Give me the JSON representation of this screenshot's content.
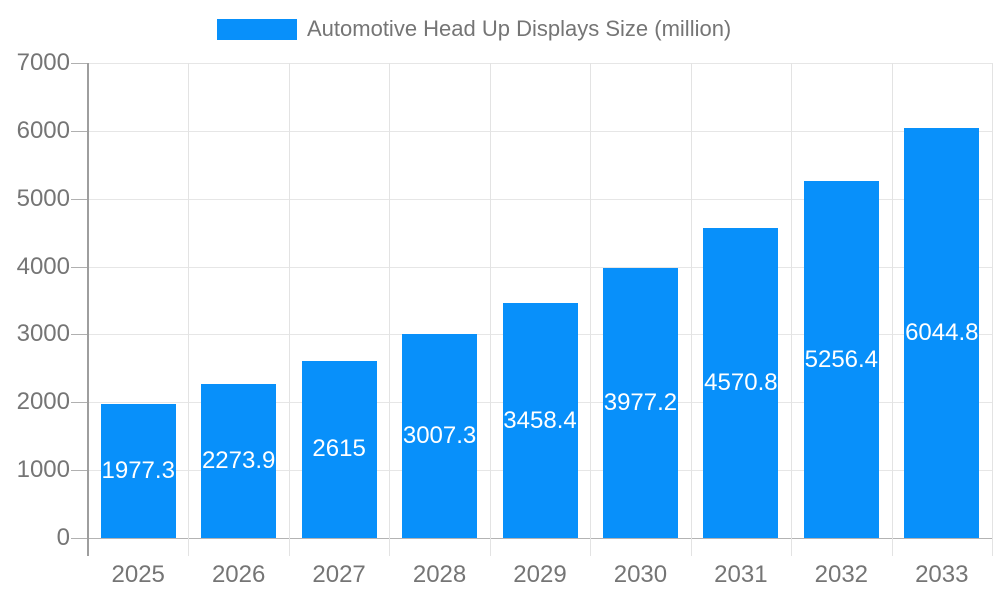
{
  "legend": {
    "series_label": "Automotive Head Up Displays Size (million)"
  },
  "chart_data": {
    "type": "bar",
    "title": "Automotive Head Up Displays Size (million)",
    "series_name": "Automotive Head Up Displays Size (million)",
    "categories": [
      "2025",
      "2026",
      "2027",
      "2028",
      "2029",
      "2030",
      "2031",
      "2032",
      "2033"
    ],
    "values": [
      1977.3,
      2273.9,
      2615,
      3007.3,
      3458.4,
      3977.2,
      4570.8,
      5256.4,
      6044.8
    ],
    "value_labels": [
      "1977.3",
      "2273.9",
      "2615",
      "3007.3",
      "3458.4",
      "3977.2",
      "4570.8",
      "5256.4",
      "6044.8"
    ],
    "xlabel": "",
    "ylabel": "",
    "ylim": [
      0,
      7000
    ],
    "yticks": [
      0,
      1000,
      2000,
      3000,
      4000,
      5000,
      6000,
      7000
    ],
    "ytick_labels": [
      "0",
      "1000",
      "2000",
      "3000",
      "4000",
      "5000",
      "6000",
      "7000"
    ],
    "grid": true,
    "legend_position": "top-center",
    "colors": {
      "bar": "#0890fa",
      "bar_label": "#ffffff",
      "axis_text": "#757575",
      "legend_text": "#757575",
      "h_gridline": "#e6e6e6",
      "v_gridline": "#e3e3e3",
      "baseline": "#b3b3b3",
      "tick": "#b0b0b0",
      "axis_line": "#9e9e9e",
      "background": "#ffffff"
    }
  }
}
